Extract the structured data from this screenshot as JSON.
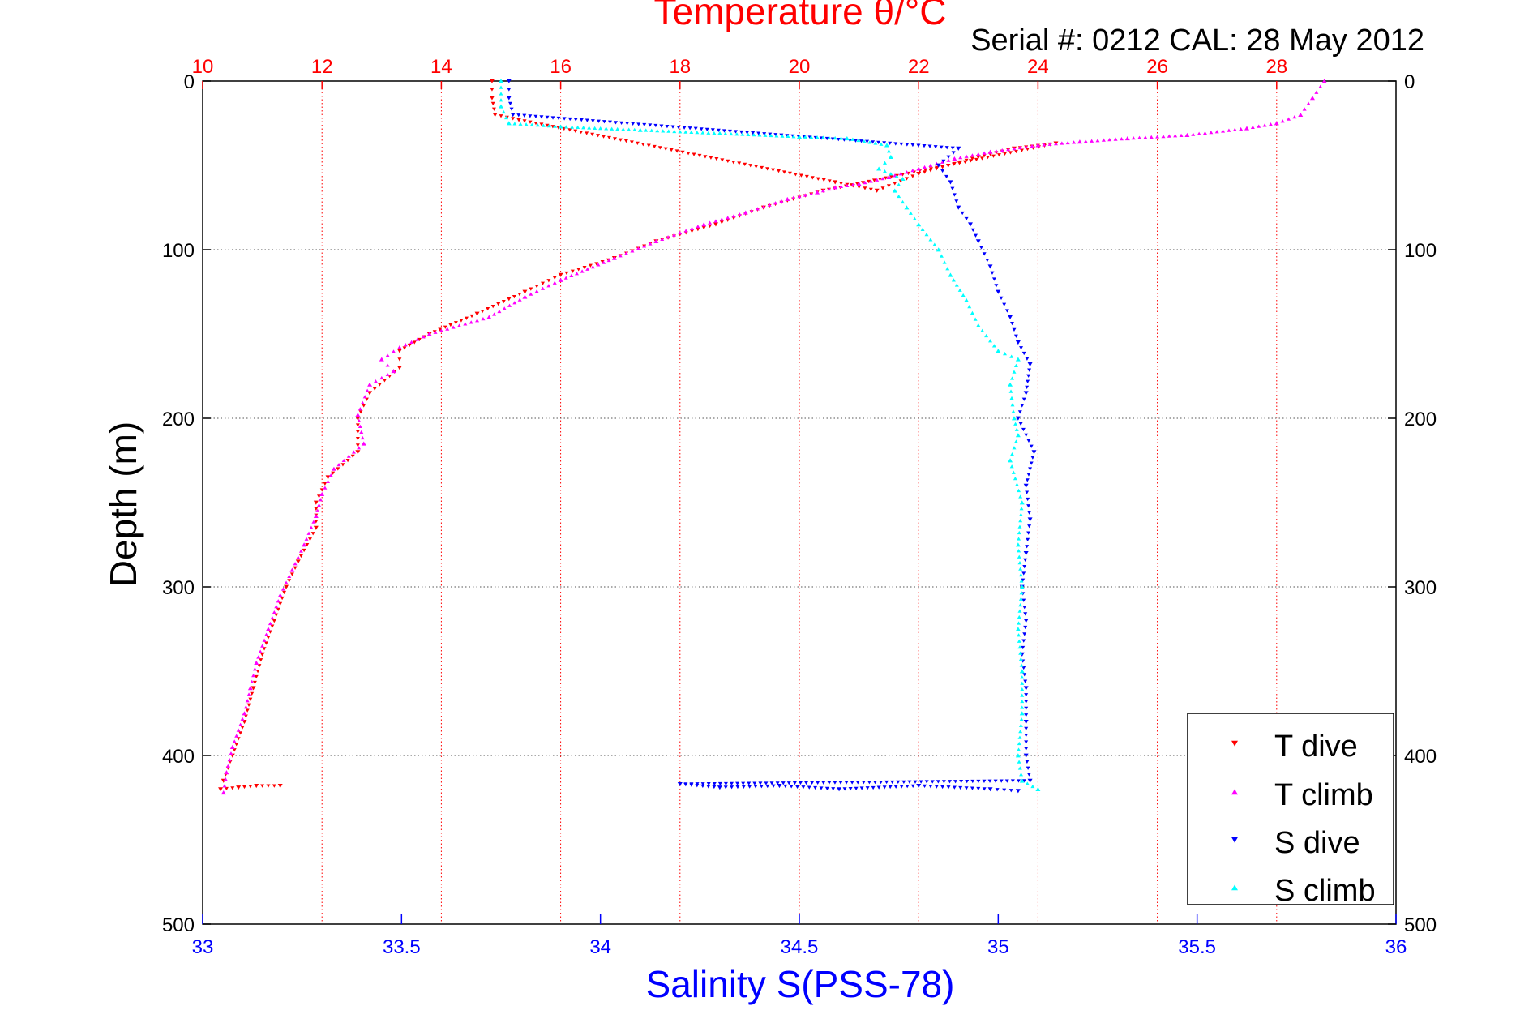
{
  "chart_data": {
    "type": "scatter",
    "title": "Temperature θ/°C",
    "subtitle": "Serial #: 0212  CAL: 28 May 2012",
    "ylabel": "Depth (m)",
    "xlabel": "Salinity S(PSS-78)",
    "ylim": [
      0,
      500
    ],
    "y_reversed": true,
    "y_ticks": [
      "0",
      "100",
      "200",
      "300",
      "400",
      "500"
    ],
    "temp_axis": {
      "position": "top",
      "color": "#ff0000",
      "range": [
        10,
        30
      ],
      "ticks": [
        "10",
        "12",
        "14",
        "16",
        "18",
        "20",
        "22",
        "24",
        "26",
        "28"
      ]
    },
    "sal_axis": {
      "position": "bottom",
      "color": "#0000ff",
      "range": [
        33,
        36
      ],
      "ticks": [
        "33",
        "33.5",
        "34",
        "34.5",
        "35",
        "35.5",
        "36"
      ]
    },
    "grid": true,
    "legend_position": "bottom-right",
    "series": [
      {
        "name": "T dive",
        "axis": "temp",
        "color": "#ff0000",
        "marker": "triangle-down",
        "points": [
          [
            14.85,
            0
          ],
          [
            14.85,
            10
          ],
          [
            14.9,
            20
          ],
          [
            15.3,
            23
          ],
          [
            20.6,
            60
          ],
          [
            21.3,
            65
          ],
          [
            22.0,
            55
          ],
          [
            23.0,
            45
          ],
          [
            23.6,
            40
          ],
          [
            24.3,
            37
          ],
          [
            20.4,
            65
          ],
          [
            19.4,
            75
          ],
          [
            18.6,
            85
          ],
          [
            17.6,
            95
          ],
          [
            16.9,
            105
          ],
          [
            16.0,
            115
          ],
          [
            15.4,
            125
          ],
          [
            14.6,
            138
          ],
          [
            13.8,
            150
          ],
          [
            13.3,
            160
          ],
          [
            13.3,
            170
          ],
          [
            12.8,
            185
          ],
          [
            12.6,
            200
          ],
          [
            12.6,
            220
          ],
          [
            12.1,
            235
          ],
          [
            11.9,
            250
          ],
          [
            11.9,
            265
          ],
          [
            11.6,
            285
          ],
          [
            11.4,
            300
          ],
          [
            11.2,
            320
          ],
          [
            11.0,
            340
          ],
          [
            10.85,
            360
          ],
          [
            10.7,
            380
          ],
          [
            10.5,
            400
          ],
          [
            10.35,
            415
          ],
          [
            10.3,
            420
          ],
          [
            10.6,
            419
          ],
          [
            10.9,
            418
          ],
          [
            11.3,
            418
          ]
        ]
      },
      {
        "name": "T climb",
        "axis": "temp",
        "color": "#ff00ff",
        "marker": "triangle-up",
        "points": [
          [
            28.8,
            0
          ],
          [
            28.6,
            10
          ],
          [
            28.4,
            20
          ],
          [
            28.0,
            25
          ],
          [
            27.5,
            28
          ],
          [
            26.5,
            32
          ],
          [
            25.5,
            34
          ],
          [
            24.7,
            36
          ],
          [
            24.0,
            38
          ],
          [
            23.2,
            42
          ],
          [
            22.6,
            46
          ],
          [
            22.0,
            52
          ],
          [
            21.5,
            57
          ],
          [
            21.0,
            61
          ],
          [
            20.6,
            63
          ],
          [
            20.3,
            66
          ],
          [
            19.8,
            70
          ],
          [
            19.1,
            78
          ],
          [
            18.4,
            85
          ],
          [
            17.6,
            95
          ],
          [
            16.9,
            105
          ],
          [
            16.0,
            118
          ],
          [
            15.4,
            128
          ],
          [
            14.8,
            140
          ],
          [
            13.8,
            150
          ],
          [
            13.3,
            158
          ],
          [
            13.0,
            165
          ],
          [
            13.2,
            172
          ],
          [
            12.8,
            180
          ],
          [
            12.6,
            198
          ],
          [
            12.7,
            215
          ],
          [
            12.2,
            230
          ],
          [
            12.0,
            245
          ],
          [
            11.9,
            258
          ],
          [
            11.7,
            275
          ],
          [
            11.5,
            290
          ],
          [
            11.3,
            305
          ],
          [
            11.1,
            325
          ],
          [
            10.9,
            345
          ],
          [
            10.8,
            360
          ],
          [
            10.7,
            375
          ],
          [
            10.5,
            395
          ],
          [
            10.4,
            410
          ],
          [
            10.35,
            422
          ]
        ]
      },
      {
        "name": "S dive",
        "axis": "sal",
        "color": "#0000ff",
        "marker": "triangle-down",
        "points": [
          [
            33.77,
            0
          ],
          [
            33.77,
            10
          ],
          [
            33.78,
            20
          ],
          [
            34.9,
            40
          ],
          [
            34.85,
            50
          ],
          [
            34.88,
            60
          ],
          [
            34.9,
            75
          ],
          [
            34.93,
            85
          ],
          [
            34.95,
            95
          ],
          [
            34.98,
            110
          ],
          [
            35.0,
            125
          ],
          [
            35.03,
            140
          ],
          [
            35.05,
            155
          ],
          [
            35.08,
            168
          ],
          [
            35.07,
            185
          ],
          [
            35.05,
            200
          ],
          [
            35.09,
            220
          ],
          [
            35.07,
            240
          ],
          [
            35.08,
            260
          ],
          [
            35.07,
            280
          ],
          [
            35.06,
            300
          ],
          [
            35.07,
            320
          ],
          [
            35.06,
            340
          ],
          [
            35.07,
            360
          ],
          [
            35.07,
            380
          ],
          [
            35.07,
            400
          ],
          [
            35.08,
            415
          ],
          [
            34.2,
            417
          ],
          [
            34.3,
            419
          ],
          [
            34.45,
            418
          ],
          [
            34.6,
            420
          ],
          [
            34.8,
            418
          ],
          [
            34.98,
            420
          ],
          [
            35.05,
            421
          ]
        ]
      },
      {
        "name": "S climb",
        "axis": "sal",
        "color": "#00ffff",
        "marker": "triangle-up",
        "points": [
          [
            33.75,
            0
          ],
          [
            33.75,
            15
          ],
          [
            33.77,
            25
          ],
          [
            33.9,
            27
          ],
          [
            34.1,
            29
          ],
          [
            34.3,
            31
          ],
          [
            34.5,
            33
          ],
          [
            34.62,
            34
          ],
          [
            34.72,
            38
          ],
          [
            34.73,
            45
          ],
          [
            34.7,
            52
          ],
          [
            34.76,
            58
          ],
          [
            34.74,
            65
          ],
          [
            34.77,
            75
          ],
          [
            34.8,
            85
          ],
          [
            34.85,
            100
          ],
          [
            34.88,
            115
          ],
          [
            34.92,
            130
          ],
          [
            34.95,
            145
          ],
          [
            35.0,
            160
          ],
          [
            35.05,
            165
          ],
          [
            35.03,
            180
          ],
          [
            35.04,
            200
          ],
          [
            35.05,
            210
          ],
          [
            35.03,
            225
          ],
          [
            35.06,
            250
          ],
          [
            35.05,
            275
          ],
          [
            35.06,
            300
          ],
          [
            35.05,
            325
          ],
          [
            35.06,
            350
          ],
          [
            35.06,
            375
          ],
          [
            35.05,
            400
          ],
          [
            35.06,
            415
          ],
          [
            35.1,
            420
          ]
        ]
      }
    ]
  }
}
